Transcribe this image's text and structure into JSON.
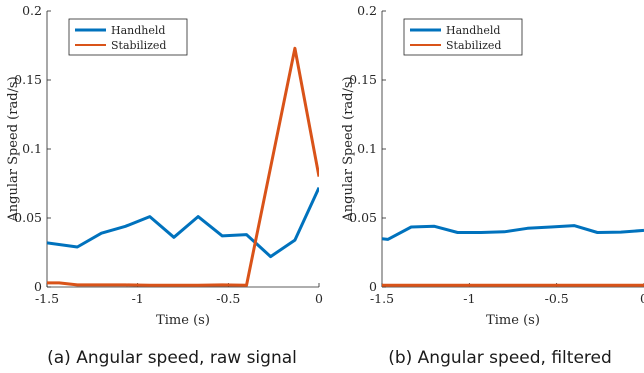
{
  "chart_data": [
    {
      "type": "line",
      "caption": "(a) Angular speed, raw signal",
      "xlabel": "Time (s)",
      "ylabel": "Angular Speed (rad/s)",
      "xlim": [
        -1.5,
        0
      ],
      "ylim": [
        0,
        0.2
      ],
      "xticks": [
        -1.5,
        -1,
        -0.5,
        0
      ],
      "xtick_labels": [
        "-1.5",
        "-1",
        "-0.5",
        "0"
      ],
      "yticks": [
        0,
        0.05,
        0.1,
        0.15,
        0.2
      ],
      "ytick_labels": [
        "0",
        "0.05",
        "0.1",
        "0.15",
        "0.2"
      ],
      "grid": false,
      "legend_position": "top-left",
      "series": [
        {
          "name": "Handheld",
          "color": "#0072BD",
          "x": [
            -1.5,
            -1.333,
            -1.2,
            -1.067,
            -0.933,
            -0.8,
            -0.667,
            -0.533,
            -0.4,
            -0.267,
            -0.133,
            0
          ],
          "y": [
            0.032,
            0.029,
            0.039,
            0.044,
            0.051,
            0.036,
            0.051,
            0.037,
            0.038,
            0.022,
            0.034,
            0.072
          ]
        },
        {
          "name": "Stabilized",
          "color": "#D95319",
          "x": [
            -1.5,
            -1.433,
            -1.333,
            -1.2,
            -1.067,
            -0.933,
            -0.8,
            -0.667,
            -0.533,
            -0.4,
            -0.133,
            0
          ],
          "y": [
            0.003,
            0.003,
            0.0015,
            0.0015,
            0.0015,
            0.0012,
            0.0012,
            0.0012,
            0.0015,
            0.0012,
            0.173,
            0.08
          ]
        }
      ]
    },
    {
      "type": "line",
      "caption": "(b) Angular speed, filtered",
      "xlabel": "Time (s)",
      "ylabel": "Angular Speed (rad/s)",
      "xlim": [
        -1.5,
        0
      ],
      "ylim": [
        0,
        0.2
      ],
      "xticks": [
        -1.5,
        -1,
        -0.5,
        0
      ],
      "xtick_labels": [
        "-1.5",
        "-1",
        "-0.5",
        "0"
      ],
      "yticks": [
        0,
        0.05,
        0.1,
        0.15,
        0.2
      ],
      "ytick_labels": [
        "0",
        "0.05",
        "0.1",
        "0.15",
        "0.2"
      ],
      "grid": false,
      "legend_position": "top-left",
      "series": [
        {
          "name": "Handheld",
          "color": "#0072BD",
          "x": [
            -1.5,
            -1.467,
            -1.333,
            -1.2,
            -1.067,
            -0.933,
            -0.8,
            -0.667,
            -0.533,
            -0.4,
            -0.267,
            -0.133,
            0
          ],
          "y": [
            0.035,
            0.0345,
            0.0435,
            0.044,
            0.0395,
            0.0395,
            0.04,
            0.0425,
            0.0435,
            0.0445,
            0.0395,
            0.0398,
            0.041
          ]
        },
        {
          "name": "Stabilized",
          "color": "#D95319",
          "x": [
            -1.5,
            -1.333,
            -1.2,
            -1.067,
            -0.933,
            -0.8,
            -0.667,
            -0.533,
            -0.4,
            -0.267,
            -0.133,
            0
          ],
          "y": [
            0.0012,
            0.0012,
            0.0012,
            0.0013,
            0.0013,
            0.0013,
            0.0013,
            0.0013,
            0.0013,
            0.0013,
            0.0013,
            0.0013
          ]
        }
      ]
    }
  ]
}
